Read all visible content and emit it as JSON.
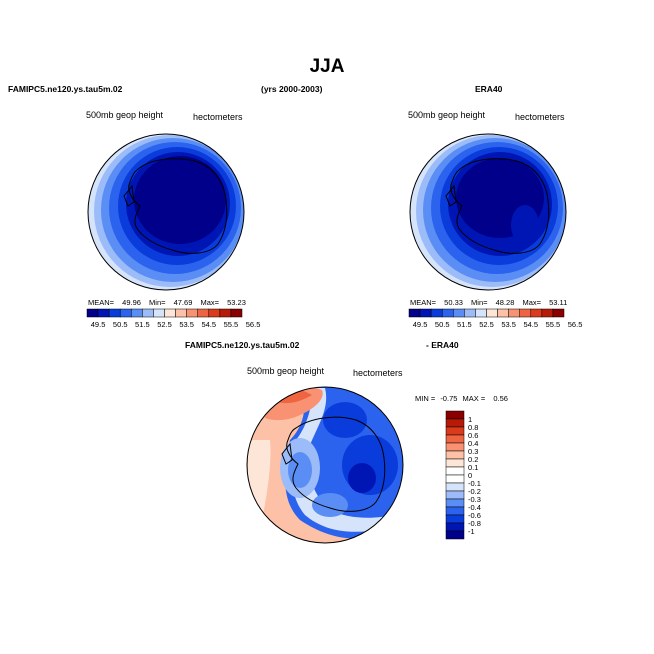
{
  "title": "JJA",
  "left_panel": {
    "case": "FAMIPC5.ne120.ys.tau5m.02",
    "variable": "500mb geop height",
    "units": "hectometers",
    "stats": {
      "mean_label": "MEAN=",
      "mean": "49.96",
      "min_label": "Min=",
      "min": "47.69",
      "max_label": "Max=",
      "max": "53.23"
    }
  },
  "years": "(yrs 2000-2003)",
  "right_panel": {
    "case": "ERA40",
    "variable": "500mb geop height",
    "units": "hectometers",
    "stats": {
      "mean_label": "MEAN=",
      "mean": "50.33",
      "min_label": "Min=",
      "min": "48.28",
      "max_label": "Max=",
      "max": "53.11"
    }
  },
  "abs_colorbar": {
    "labels": [
      "49.5",
      "50.5",
      "51.5",
      "52.5",
      "53.5",
      "54.5",
      "55.5",
      "56.5"
    ],
    "colors": [
      "#00008a",
      "#0016b4",
      "#0a3cdc",
      "#2b63ee",
      "#5a8ef5",
      "#9bbcf8",
      "#d6e4fb",
      "#fde6d8",
      "#fcc1a6",
      "#f99272",
      "#ef6542",
      "#dc3a1c",
      "#b81a08",
      "#8a0000"
    ]
  },
  "diff_panel": {
    "case": "FAMIPC5.ne120.ys.tau5m.02",
    "minus": "- ERA40",
    "variable": "500mb geop height",
    "units": "hectometers",
    "stats": {
      "min_label": "MIN =",
      "min": "-0.75",
      "max_label": "MAX =",
      "max": "0.56"
    }
  },
  "diff_colorbar": {
    "labels": [
      "1",
      "0.8",
      "0.6",
      "0.4",
      "0.3",
      "0.2",
      "0.1",
      "0",
      "-0.1",
      "-0.2",
      "-0.3",
      "-0.4",
      "-0.6",
      "-0.8",
      "-1"
    ],
    "colors": [
      "#8a0000",
      "#b81a08",
      "#dc3a1c",
      "#ef6542",
      "#f99272",
      "#fcc1a6",
      "#fde6d8",
      "#ffffff",
      "#ffffff",
      "#d6e4fb",
      "#9bbcf8",
      "#5a8ef5",
      "#2b63ee",
      "#0a3cdc",
      "#0016b4",
      "#00008a"
    ]
  }
}
